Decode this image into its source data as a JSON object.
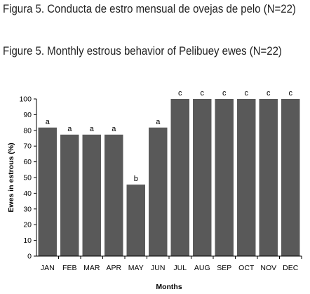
{
  "captions": {
    "spanish": "Figura 5. Conducta de estro mensual de ovejas de pelo (N=22)",
    "english": "Figure 5. Monthly estrous behavior of Pelibuey ewes (N=22)"
  },
  "chart_data": {
    "type": "bar",
    "xlabel": "Months",
    "ylabel": "Ewes in estrous (%)",
    "ylim": [
      0,
      100
    ],
    "yticks": [
      0,
      10,
      20,
      30,
      40,
      50,
      60,
      70,
      80,
      90,
      100
    ],
    "grid": false,
    "bar_color": "#595959",
    "categories": [
      "JAN",
      "FEB",
      "MAR",
      "APR",
      "MAY",
      "JUN",
      "JUL",
      "AUG",
      "SEP",
      "OCT",
      "NOV",
      "DEC"
    ],
    "values": [
      81.8,
      77.3,
      77.3,
      77.3,
      45.5,
      81.8,
      100,
      100,
      100,
      100,
      100,
      100
    ],
    "annotations": [
      "a",
      "a",
      "a",
      "a",
      "b",
      "a",
      "c",
      "c",
      "c",
      "c",
      "c",
      "c"
    ]
  }
}
